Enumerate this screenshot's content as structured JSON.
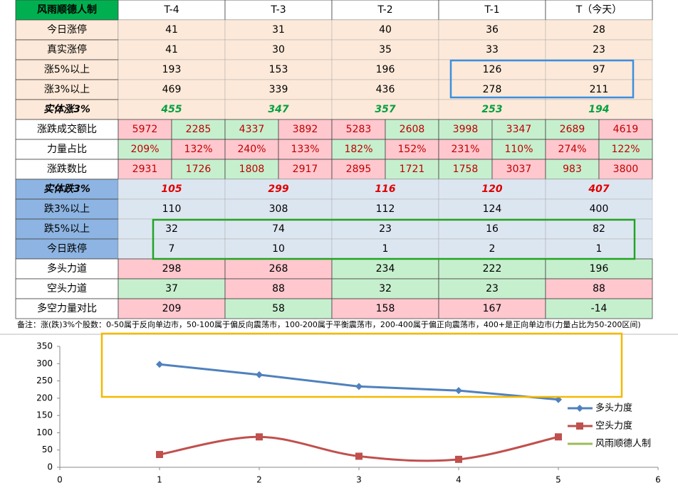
{
  "table": {
    "header": [
      "风雨顺德人制",
      "T-4",
      "T-3",
      "T-2",
      "T-1",
      "T（今天）"
    ],
    "rows": [
      {
        "label": "今日涨停",
        "values": [
          41,
          31,
          40,
          36,
          28
        ]
      },
      {
        "label": "真实涨停",
        "values": [
          41,
          30,
          35,
          33,
          23
        ]
      },
      {
        "label": "涨5%以上",
        "values": [
          193,
          153,
          196,
          126,
          97
        ]
      },
      {
        "label": "涨3%以上",
        "values": [
          469,
          339,
          436,
          278,
          211
        ]
      },
      {
        "label": "实体涨3%",
        "values": [
          455,
          347,
          357,
          253,
          194
        ]
      },
      {
        "label": "涨跌成交额比",
        "values": [
          5972,
          2285,
          4337,
          3892,
          5283,
          2608,
          3998,
          3347,
          2689,
          4619
        ]
      },
      {
        "label": "力量占比",
        "values": [
          "209%",
          "132%",
          "240%",
          "133%",
          "182%",
          "152%",
          "231%",
          "110%",
          "274%",
          "122%"
        ]
      },
      {
        "label": "涨跌数比",
        "values": [
          2931,
          1726,
          1808,
          2917,
          2895,
          1721,
          1758,
          3037,
          983,
          3800
        ]
      },
      {
        "label": "实体跌3%",
        "values": [
          105,
          299,
          116,
          120,
          407
        ]
      },
      {
        "label": "跌3%以上",
        "values": [
          110,
          308,
          112,
          124,
          400
        ]
      },
      {
        "label": "跌5%以上",
        "values": [
          32,
          74,
          23,
          16,
          82
        ]
      },
      {
        "label": "今日跌停",
        "values": [
          7,
          10,
          1,
          2,
          1
        ]
      },
      {
        "label": "多头力道",
        "values": [
          298,
          268,
          234,
          222,
          196
        ]
      },
      {
        "label": "空头力道",
        "values": [
          37,
          88,
          32,
          23,
          88
        ]
      },
      {
        "label": "多空力量对比",
        "values": [
          209,
          58,
          158,
          167,
          -14
        ]
      }
    ]
  },
  "note": "备注：涨(跌)3%个股数：0-50属于反向单边市，50-100属于偏反向震荡市，100-200属于平衡震荡市，200-400属于偏正向震荡市，400+是正向单边市(力量占比为50-200区间)",
  "chart_data": {
    "type": "line",
    "x": [
      1,
      2,
      3,
      4,
      5
    ],
    "xlim": [
      0,
      6
    ],
    "xticks": [
      0,
      1,
      2,
      3,
      4,
      5,
      6
    ],
    "ylim": [
      0,
      350
    ],
    "yticks": [
      0,
      50,
      100,
      150,
      200,
      250,
      300,
      350
    ],
    "series": [
      {
        "name": "多头力度",
        "color": "#4f81bd",
        "marker": "diamond",
        "smooth": false,
        "values": [
          298,
          268,
          234,
          222,
          196
        ]
      },
      {
        "name": "空头力度",
        "color": "#c0504d",
        "marker": "square",
        "smooth": true,
        "values": [
          37,
          88,
          32,
          23,
          88
        ]
      },
      {
        "name": "风雨顺德人制",
        "color": "#9bbb59",
        "values": [
          null,
          null,
          null,
          null,
          null
        ]
      }
    ]
  }
}
